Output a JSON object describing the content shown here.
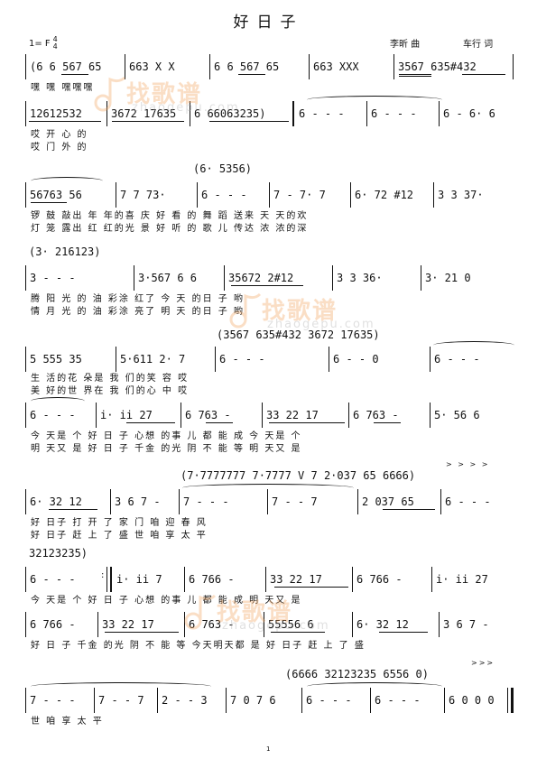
{
  "title": "好日子",
  "key": "1= F",
  "time_signature": {
    "top": "4",
    "bottom": "4"
  },
  "credits": {
    "composer": "李昕 曲",
    "lyricist": "车行 词"
  },
  "watermark": {
    "cn": "找歌谱",
    "en": "zhaogepu.com"
  },
  "page_number": "1",
  "systems": [
    {
      "measures": [
        "(6 6 567 65",
        "663 X X",
        "6 6 567 65",
        "663 XXX",
        "3567 635#432"
      ],
      "lyrics": [
        "           嘿 嘿                               嘿嘿嘿"
      ]
    },
    {
      "measures": [
        "12612532",
        "3672 17635",
        "6 66063235)",
        "6 - - -",
        "6 - - -",
        "6 - 6· 6"
      ],
      "lyrics": [
        "                                         哎                            开 心 的",
        "                                         哎                            门 外 的"
      ]
    },
    {
      "cue": "(6· 5356)",
      "measures": [
        "56763 56",
        "7 7 73·",
        "6 - - -",
        "7 - 7· 7",
        "6· 72 #12",
        "3 3 37·"
      ],
      "lyrics": [
        "锣  鼓 敲出 年 年的喜  庆            好  看 的 舞  蹈 送来 天 天的欢",
        "灯  笼 露出 红 红的光  景            好  听 的 歌  儿 传达 浓 浓的深"
      ]
    },
    {
      "cue": "(3· 216123)",
      "measures": [
        "3 - - -",
        "3·567 6 6",
        "35672 2#12",
        "3 3 36·",
        "3· 21 0"
      ],
      "lyrics": [
        "腾                阳  光 的 油   彩涂 红了 今 天 的日  子  哟",
        "情                月  光 的 油   彩涂 亮了 明 天 的日  子  哟"
      ]
    },
    {
      "cue": "(3567 635#432 3672 17635)",
      "measures": [
        "5 555 35",
        "5·611 2· 7",
        "6 - - -",
        "6 - - 0",
        "6 - - -"
      ],
      "lyrics": [
        "生 活的花 朵是 我  们的笑   容                      哎",
        "美 好的世 界在 我  们的心   中                      哎"
      ]
    },
    {
      "measures": [
        "6 - - -",
        "i· ii 27",
        "6 763 -",
        "33 22 17",
        "6 763 -",
        "5· 56 6"
      ],
      "lyrics": [
        "          今  天是 个   好 日 子    心想 的事 儿   都 能 成      今  天是 个",
        "          明  天又 是   好 日 子    千金 的光 阴   不 能 等      明  天又 是"
      ]
    },
    {
      "cue": "(7·7777777  7·7777 V 7   2·037 65  6666)",
      "measures": [
        "6· 32 12",
        "3 6 7 -",
        "7 - - -",
        "7 - - 7",
        "2 037 65",
        "6 - - -"
      ],
      "lyrics": [
        "好  日子 打   开 了 家   门                         咱 迎  春    风",
        "好  日子 赶   上 了 盛   世                         咱 享  太    平"
      ]
    },
    {
      "cue": "32123235)",
      "measures": [
        "6 - - -",
        "i· ii 7",
        "6 766 -",
        "33 22 17",
        "6 766 -",
        "i· ii 27"
      ],
      "lyrics": [
        "            今 天是 个  好 日 子   心想 的事 儿   都 能 成     明 天又 是"
      ]
    },
    {
      "measures": [
        "6 766 -",
        "33 22 17",
        "6 763 -",
        "55556 6",
        "6· 32 12",
        "3 6 7 -"
      ],
      "lyrics": [
        "好 日 子  千金 的光 阴   不 能 等    今天明天都 是   好  日子 赶   上 了 盛"
      ]
    },
    {
      "cue": "(6666  32123235  6556 0)",
      "measures": [
        "7 - - -",
        "7 - - 7",
        "2 - - 3",
        "7 0 7 6",
        "6 - - -",
        "6 - - -",
        "6 0 0 0"
      ],
      "lyrics": [
        "世              咱 享     太          平"
      ]
    }
  ]
}
